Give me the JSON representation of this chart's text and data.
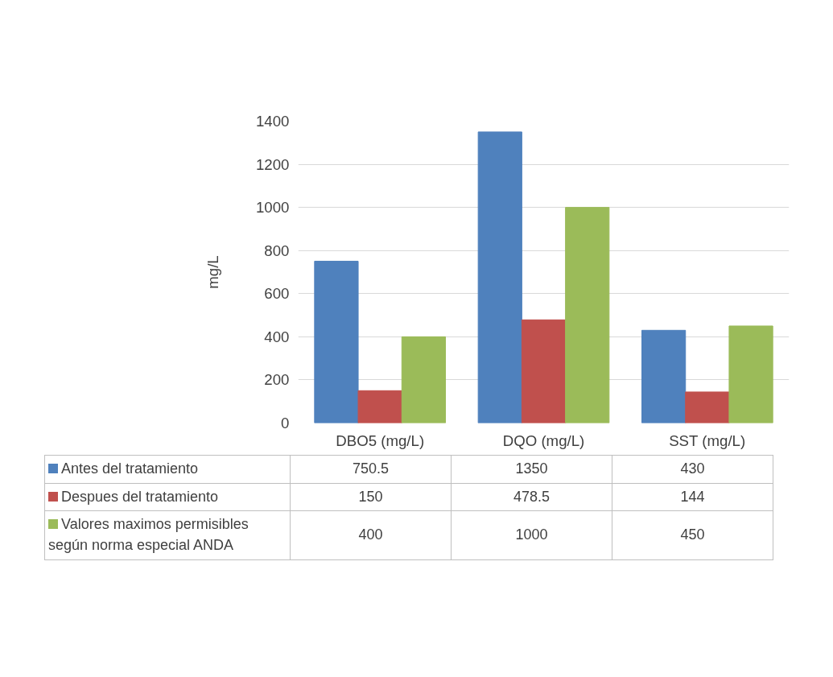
{
  "chart_data": {
    "type": "bar",
    "ylabel": "mg/L",
    "categories": [
      "DBO5 (mg/L)",
      "DQO (mg/L)",
      "SST (mg/L)"
    ],
    "series": [
      {
        "name": "Antes del tratamiento",
        "color": "#4f81bd",
        "values": [
          750.5,
          1350,
          430
        ]
      },
      {
        "name": "Despues del tratamiento",
        "color": "#c0504d",
        "values": [
          150,
          478.5,
          144
        ]
      },
      {
        "name": "Valores maximos permisibles según norma especial ANDA",
        "color": "#9bbb59",
        "values": [
          400,
          1000,
          450
        ]
      }
    ],
    "ylim": [
      0,
      1400
    ],
    "yticks": [
      0,
      200,
      400,
      600,
      800,
      1000,
      1200,
      1400
    ],
    "grid": "y",
    "legend": "bottom",
    "data_labels": true
  }
}
